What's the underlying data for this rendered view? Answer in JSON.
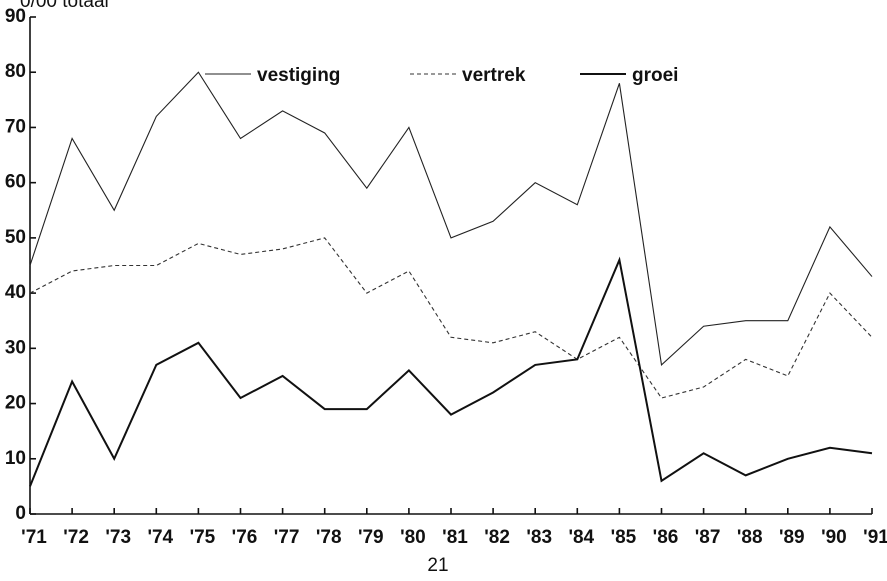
{
  "chart_data": {
    "type": "line",
    "title": "0/00 totaal",
    "categories": [
      "'71",
      "'72",
      "'73",
      "'74",
      "'75",
      "'76",
      "'77",
      "'78",
      "'79",
      "'80",
      "'81",
      "'82",
      "'83",
      "'84",
      "'85",
      "'86",
      "'87",
      "'88",
      "'89",
      "'90",
      "'91"
    ],
    "series": [
      {
        "name": "vestiging",
        "color": "#222222",
        "line_style": "solid",
        "values": [
          45,
          68,
          55,
          72,
          80,
          68,
          73,
          69,
          59,
          70,
          50,
          53,
          60,
          56,
          78,
          27,
          34,
          35,
          35,
          52,
          43
        ]
      },
      {
        "name": "vertrek",
        "color": "#333333",
        "line_style": "dashed",
        "values": [
          40,
          44,
          45,
          45,
          49,
          47,
          48,
          50,
          40,
          44,
          32,
          31,
          33,
          28,
          32,
          21,
          23,
          28,
          25,
          40,
          32
        ]
      },
      {
        "name": "groei",
        "color": "#111111",
        "line_style": "bold",
        "values": [
          5,
          24,
          10,
          27,
          31,
          21,
          25,
          19,
          19,
          26,
          18,
          22,
          27,
          28,
          46,
          6,
          11,
          7,
          10,
          12,
          11
        ]
      }
    ],
    "ylim": [
      0,
      90
    ],
    "yticks": [
      0,
      10,
      20,
      30,
      40,
      50,
      60,
      70,
      80,
      90
    ],
    "grid": false,
    "legend": "top"
  },
  "page_number": "21"
}
